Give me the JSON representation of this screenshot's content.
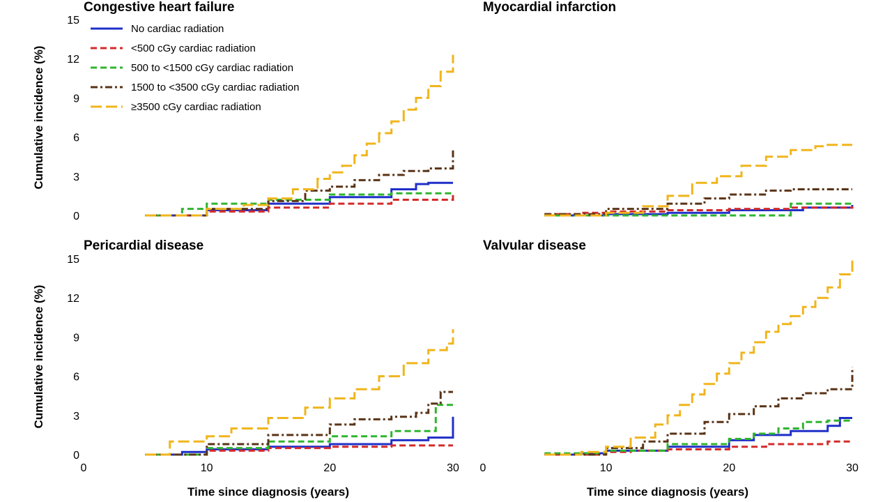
{
  "chart_data": {
    "type": "line",
    "step": true,
    "x_unit": "years",
    "xlabel": "Time since diagnosis (years)",
    "ylabel": "Cumulative incidence (%)",
    "xlim": [
      0,
      30
    ],
    "ylim": [
      0,
      15
    ],
    "xticks": [
      "0",
      "10",
      "20",
      "30"
    ],
    "yticks": [
      "0",
      "3",
      "6",
      "9",
      "12",
      "15"
    ],
    "grid": false,
    "legend": {
      "placement": "top-left of first panel",
      "entries": [
        {
          "name": "No cardiac radiation",
          "color": "#1f2fc8",
          "style": "solid"
        },
        {
          "name": "<500 cGy cardiac radiation",
          "color": "#d42a2a",
          "style": "dashed"
        },
        {
          "name": "500 to <1500 cGy cardiac radiation",
          "color": "#2fb52f",
          "style": "dashed"
        },
        {
          "name": "1500 to <3500 cGy cardiac radiation",
          "color": "#5a3316",
          "style": "dash-dot"
        },
        {
          "name": "≥3500 cGy cardiac radiation",
          "color": "#f0b51c",
          "style": "long-dash"
        }
      ]
    },
    "panels": [
      {
        "title": "Congestive heart failure",
        "series": [
          {
            "name": "No cardiac radiation",
            "x": [
              5,
              10,
              15,
              20,
              25,
              27,
              28,
              30
            ],
            "y": [
              0,
              0.4,
              0.9,
              1.4,
              2.0,
              2.4,
              2.5,
              2.5
            ]
          },
          {
            "name": "<500 cGy cardiac radiation",
            "x": [
              5,
              10,
              15,
              20,
              25,
              30
            ],
            "y": [
              0,
              0.3,
              0.6,
              0.9,
              1.2,
              1.6
            ]
          },
          {
            "name": "500 to <1500 cGy cardiac radiation",
            "x": [
              5,
              8,
              10,
              15,
              20,
              25,
              30
            ],
            "y": [
              0,
              0.5,
              0.9,
              1.2,
              1.6,
              1.7,
              1.7
            ]
          },
          {
            "name": "1500 to <3500 cGy cardiac radiation",
            "x": [
              5,
              10,
              15,
              18,
              20,
              22,
              24,
              26,
              28,
              29.5,
              30
            ],
            "y": [
              0,
              0.5,
              1.1,
              1.9,
              2.2,
              2.7,
              3.1,
              3.4,
              3.6,
              3.6,
              5.0
            ]
          },
          {
            "name": "≥3500 cGy cardiac radiation",
            "x": [
              5,
              10,
              13,
              15,
              17,
              19,
              20,
              21,
              22,
              23,
              24,
              25,
              26,
              27,
              28,
              29,
              30
            ],
            "y": [
              0,
              0.5,
              0.8,
              1.3,
              2.0,
              2.8,
              3.3,
              3.8,
              4.6,
              5.5,
              6.3,
              7.2,
              8.1,
              9.0,
              9.9,
              11.0,
              12.3
            ]
          }
        ]
      },
      {
        "title": "Myocardial infarction",
        "series": [
          {
            "name": "No cardiac radiation",
            "x": [
              5,
              10,
              15,
              20,
              26,
              30
            ],
            "y": [
              0,
              0.1,
              0.2,
              0.4,
              0.6,
              0.8
            ]
          },
          {
            "name": "<500 cGy cardiac radiation",
            "x": [
              5,
              8,
              10,
              15,
              20,
              25,
              30
            ],
            "y": [
              0.1,
              0.2,
              0.3,
              0.4,
              0.5,
              0.6,
              0.7
            ]
          },
          {
            "name": "500 to <1500 cGy cardiac radiation",
            "x": [
              5,
              15,
              20,
              25,
              30
            ],
            "y": [
              0,
              0,
              0,
              0.9,
              0.9
            ]
          },
          {
            "name": "1500 to <3500 cGy cardiac radiation",
            "x": [
              5,
              10,
              15,
              18,
              20,
              23,
              25,
              30
            ],
            "y": [
              0.1,
              0.5,
              0.9,
              1.3,
              1.6,
              1.9,
              2.0,
              2.0
            ]
          },
          {
            "name": "≥3500 cGy cardiac radiation",
            "x": [
              5,
              10,
              13,
              15,
              17,
              19,
              21,
              23,
              25,
              27,
              28,
              30
            ],
            "y": [
              0,
              0.2,
              0.7,
              1.5,
              2.5,
              3.0,
              3.8,
              4.5,
              5.0,
              5.3,
              5.4,
              5.4
            ]
          }
        ]
      },
      {
        "title": "Pericardial disease",
        "series": [
          {
            "name": "No cardiac radiation",
            "x": [
              5,
              8,
              10,
              15,
              20,
              25,
              28,
              29.8,
              30
            ],
            "y": [
              0,
              0.2,
              0.4,
              0.6,
              0.8,
              1.1,
              1.3,
              1.3,
              2.9
            ]
          },
          {
            "name": "<500 cGy cardiac radiation",
            "x": [
              5,
              10,
              15,
              20,
              25,
              30
            ],
            "y": [
              0,
              0.3,
              0.5,
              0.6,
              0.7,
              0.7
            ]
          },
          {
            "name": "500 to <1500 cGy cardiac radiation",
            "x": [
              5,
              10,
              15,
              20,
              25,
              28,
              28.6,
              30
            ],
            "y": [
              0,
              0.5,
              1.0,
              1.4,
              1.8,
              1.8,
              3.8,
              3.8
            ]
          },
          {
            "name": "1500 to <3500 cGy cardiac radiation",
            "x": [
              5,
              10,
              15,
              20,
              22,
              25,
              27,
              28,
              29,
              30
            ],
            "y": [
              0,
              0.8,
              1.5,
              2.3,
              2.7,
              2.9,
              3.2,
              3.9,
              4.8,
              4.8
            ]
          },
          {
            "name": "≥3500 cGy cardiac radiation",
            "x": [
              5,
              7,
              10,
              12,
              15,
              18,
              20,
              22,
              24,
              26,
              28,
              29.5,
              30
            ],
            "y": [
              0,
              1.0,
              1.4,
              2.0,
              2.8,
              3.6,
              4.3,
              5.0,
              6.0,
              7.0,
              8.0,
              8.5,
              9.6
            ]
          }
        ]
      },
      {
        "title": "Valvular disease",
        "series": [
          {
            "name": "No cardiac radiation",
            "x": [
              5,
              8,
              10,
              15,
              20,
              22,
              25,
              28,
              29,
              30
            ],
            "y": [
              0,
              0.1,
              0.3,
              0.6,
              1.1,
              1.5,
              1.8,
              2.2,
              2.8,
              2.8
            ]
          },
          {
            "name": "<500 cGy cardiac radiation",
            "x": [
              5,
              10,
              12,
              15,
              20,
              23,
              25,
              28,
              30
            ],
            "y": [
              0,
              0.2,
              0.3,
              0.4,
              0.6,
              0.8,
              0.8,
              1.0,
              1.0
            ]
          },
          {
            "name": "500 to <1500 cGy cardiac radiation",
            "x": [
              5,
              10,
              15,
              20,
              22,
              24,
              26,
              28,
              30
            ],
            "y": [
              0.1,
              0.3,
              0.8,
              1.2,
              1.6,
              2.0,
              2.5,
              2.6,
              2.6
            ]
          },
          {
            "name": "1500 to <3500 cGy cardiac radiation",
            "x": [
              5,
              10,
              13,
              15,
              18,
              20,
              22,
              24,
              26,
              28,
              29.6,
              30
            ],
            "y": [
              0,
              0.5,
              1.0,
              1.6,
              2.5,
              3.1,
              3.7,
              4.3,
              4.7,
              5.0,
              5.0,
              6.7
            ]
          },
          {
            "name": "≥3500 cGy cardiac radiation",
            "x": [
              5,
              8,
              10,
              12,
              14,
              15,
              16,
              17,
              18,
              19,
              20,
              21,
              22,
              23,
              24,
              25,
              26,
              27,
              28,
              29,
              30
            ],
            "y": [
              0,
              0.2,
              0.6,
              1.3,
              2.3,
              3.0,
              3.8,
              4.6,
              5.4,
              6.2,
              7.0,
              7.8,
              8.6,
              9.4,
              10.0,
              10.6,
              11.3,
              12.0,
              12.8,
              13.8,
              15.0
            ]
          }
        ]
      }
    ]
  }
}
